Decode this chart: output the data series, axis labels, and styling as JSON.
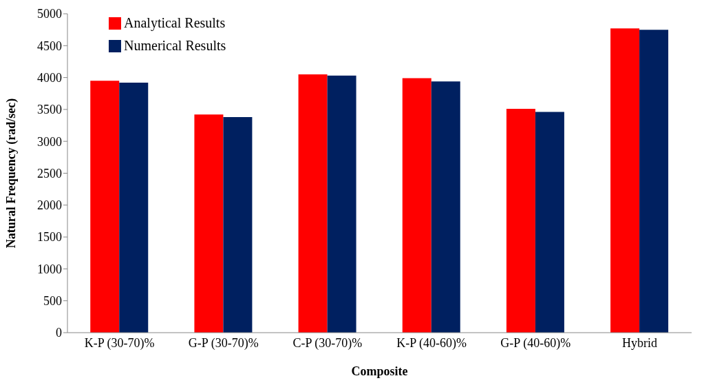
{
  "chart_data": {
    "type": "bar",
    "xlabel": "Composite",
    "ylabel": "Natural Frequency  (rad/sec)",
    "categories": [
      "K-P (30-70)%",
      "G-P (30-70)%",
      "C-P (30-70)%",
      "K-P (40-60)%",
      "G-P (40-60)%",
      "Hybrid"
    ],
    "series": [
      {
        "name": "Analytical Results",
        "color": "#ff0000",
        "values": [
          3950,
          3420,
          4050,
          3990,
          3510,
          4770
        ]
      },
      {
        "name": "Numerical Results",
        "color": "#002060",
        "values": [
          3920,
          3380,
          4030,
          3940,
          3460,
          4750
        ]
      }
    ],
    "ylim": [
      0,
      5000
    ],
    "yticks": [
      0,
      500,
      1000,
      1500,
      2000,
      2500,
      3000,
      3500,
      4000,
      4500,
      5000
    ],
    "grid": false,
    "legend": "top left"
  }
}
